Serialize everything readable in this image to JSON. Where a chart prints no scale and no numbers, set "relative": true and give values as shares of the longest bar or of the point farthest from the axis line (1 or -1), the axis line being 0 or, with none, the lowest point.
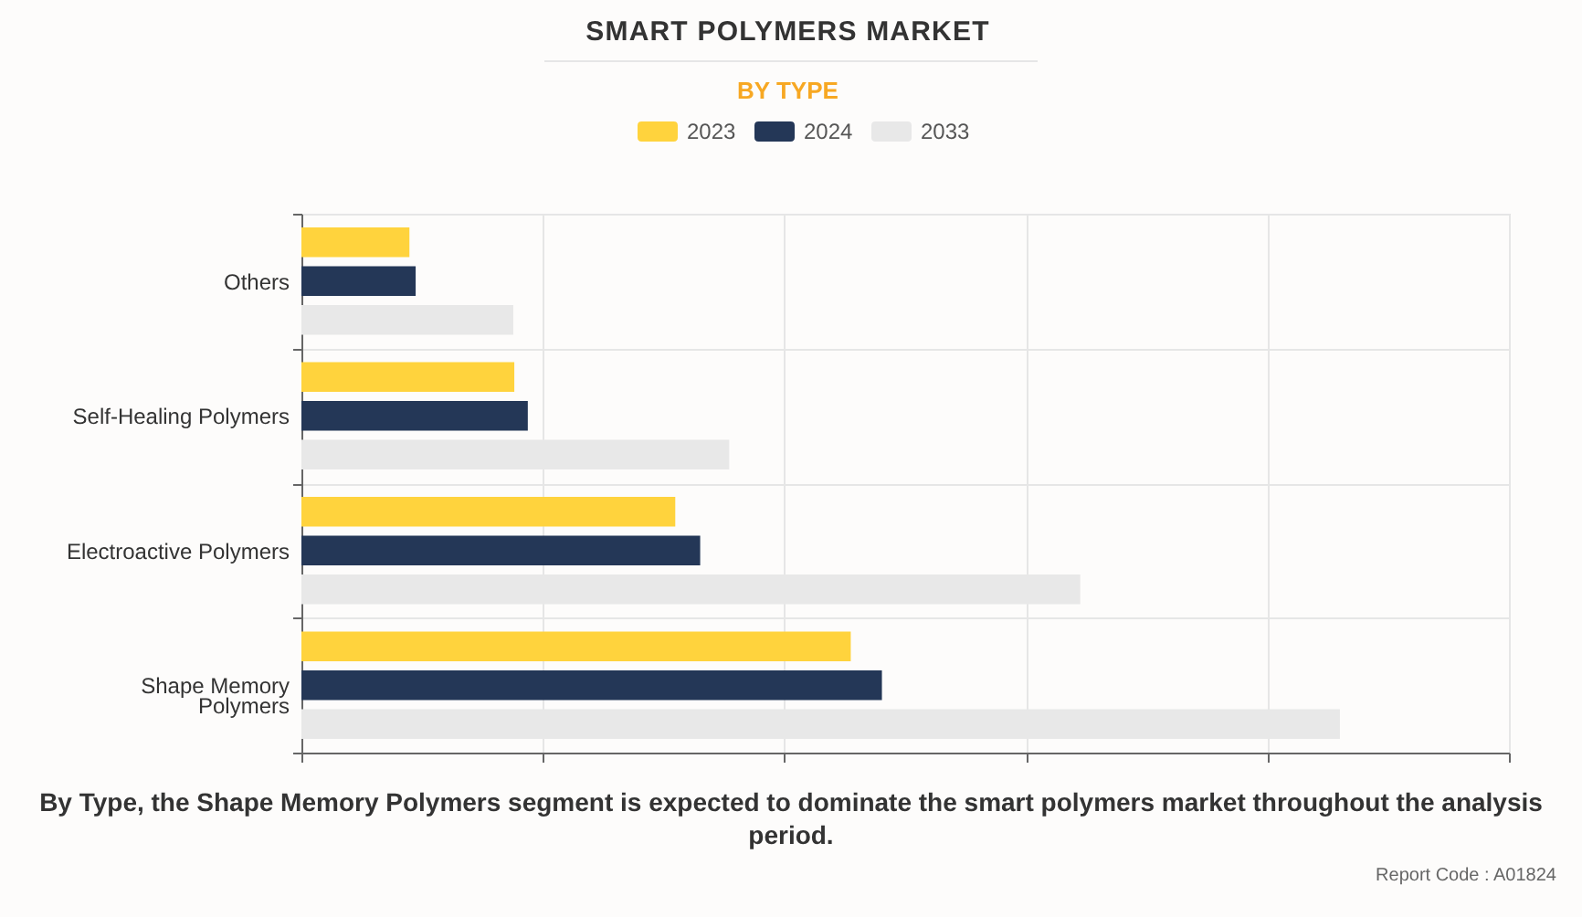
{
  "chart_data": {
    "type": "bar",
    "title": "SMART POLYMERS MARKET",
    "subtitle": "BY TYPE",
    "orientation": "horizontal",
    "relative": true,
    "categories": [
      "Others",
      "Self-Healing Polymers",
      "Electroactive Polymers",
      "Shape Memory Polymers"
    ],
    "series": [
      {
        "name": "2023",
        "color": "#ffd33d",
        "values": [
          0.104,
          0.205,
          0.36,
          0.529
        ]
      },
      {
        "name": "2024",
        "color": "#243757",
        "values": [
          0.11,
          0.218,
          0.384,
          0.559
        ]
      },
      {
        "name": "2033",
        "color": "#e8e8e8",
        "values": [
          0.204,
          0.412,
          0.75,
          1
        ]
      }
    ],
    "grid": true,
    "legend": "top",
    "tick_labels": "y",
    "annotations": [
      "By Type, the Shape Memory Polymers segment is expected to dominate the smart polymers market throughout the analysis period.",
      "Report Code : A01824"
    ]
  }
}
